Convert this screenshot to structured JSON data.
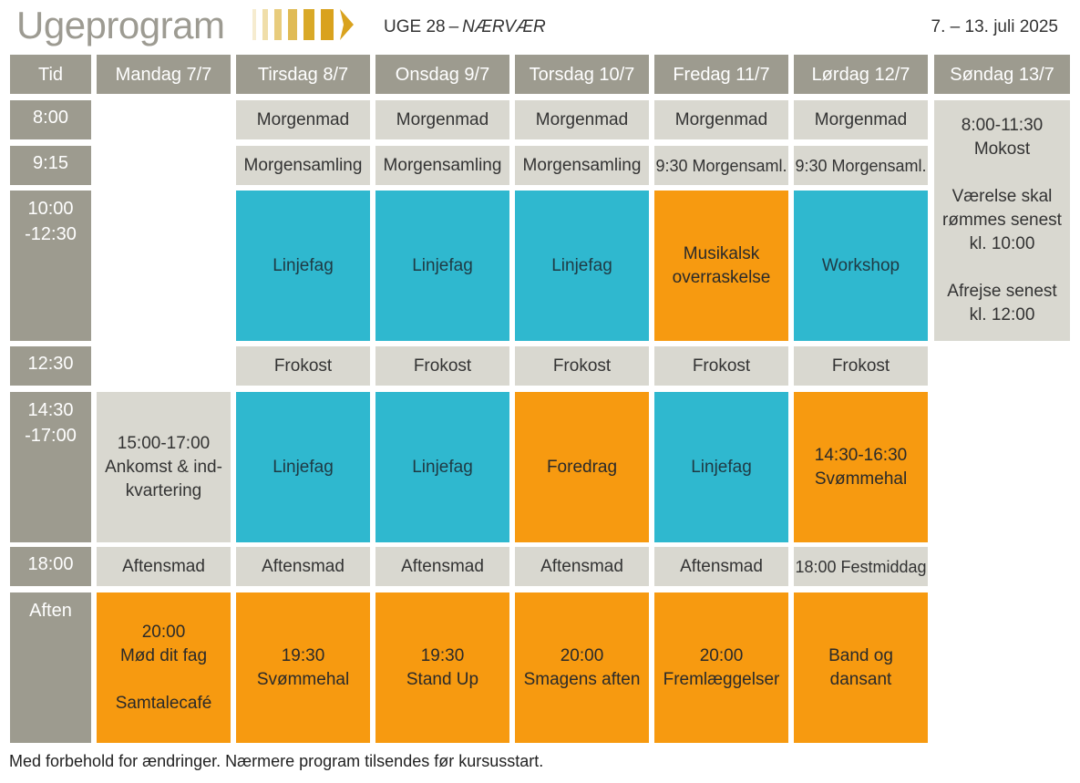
{
  "header": {
    "title": "Ugeprogram",
    "week_label": "UGE 28",
    "week_dash": "–",
    "week_theme": "NÆRVÆR",
    "date_range": "7. – 13. juli 2025"
  },
  "colors": {
    "header_gray": "#9d9b8f",
    "light_gray": "#d9d8d0",
    "cyan": "#2fb8cf",
    "orange": "#f79a10",
    "gold": "#d9a21e"
  },
  "columns": [
    "Tid",
    "Mandag 7/7",
    "Tirsdag 8/7",
    "Onsdag 9/7",
    "Torsdag 10/7",
    "Fredag 11/7",
    "Lørdag 12/7",
    "Søndag 13/7"
  ],
  "times": [
    "8:00",
    "9:15",
    "10:00\n-12:30",
    "12:30",
    "14:30\n-17:00",
    "18:00",
    "Aften"
  ],
  "cells": {
    "morgenmad": "Morgenmad",
    "morgensamling": "Morgensamling",
    "morgensaml_930": "9:30 Morgensaml.",
    "linjefag": "Linjefag",
    "musikalsk": "Musikalsk\noverraskelse",
    "workshop": "Workshop",
    "sunday": "8:00-11:30\nMokost\n\nVærelse skal\nrømmes senest\nkl. 10:00\n\nAfrejse senest\nkl. 12:00",
    "frokost": "Frokost",
    "ankomst": "15:00-17:00\nAnkomst & ind-\nkvartering",
    "foredrag": "Foredrag",
    "svommehal_sat": "14:30-16:30\nSvømmehal",
    "aftensmad": "Aftensmad",
    "festmiddag": "18:00 Festmiddag",
    "mon_evening": "20:00\nMød dit fag\n\nSamtalecafé",
    "tue_evening": "19:30\nSvømmehal",
    "wed_evening": "19:30\nStand Up",
    "thu_evening": "20:00\nSmagens aften",
    "fri_evening": "20:00\nFremlæggelser",
    "sat_evening": "Band og\ndansant"
  },
  "footer": "Med forbehold for ændringer. Nærmere program tilsendes før kursusstart."
}
